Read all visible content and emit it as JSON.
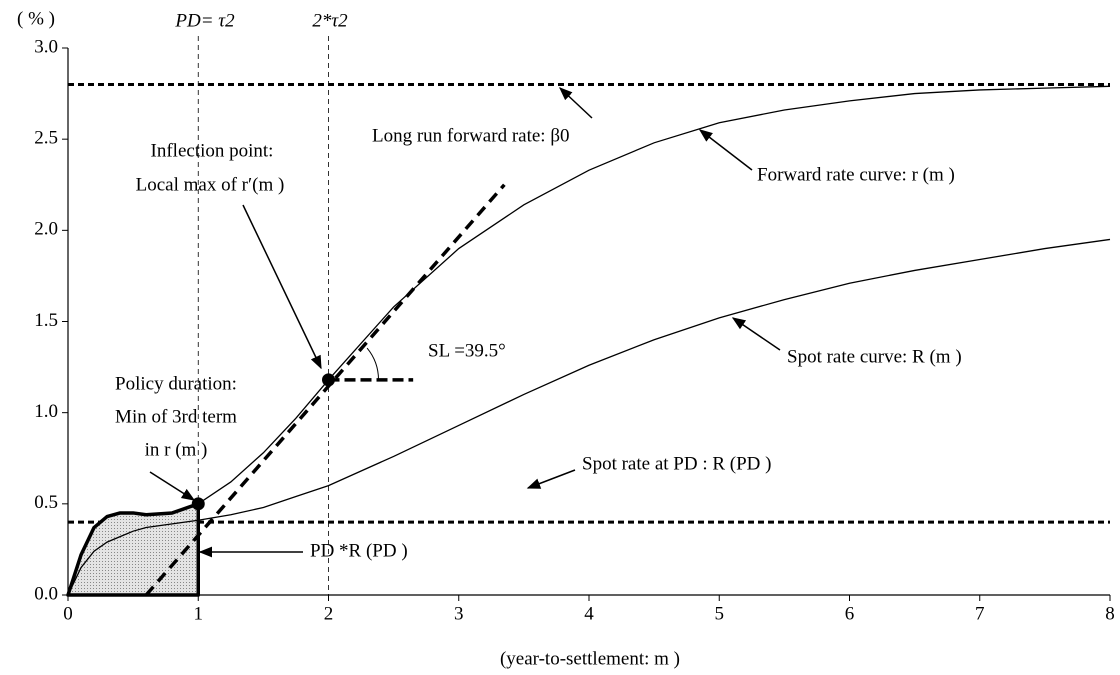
{
  "chart_data": {
    "type": "line",
    "y_label": "( % )",
    "x_label": "(year-to-settlement: m )",
    "x": [
      0,
      0.1,
      0.2,
      0.3,
      0.4,
      0.5,
      0.6,
      0.8,
      1,
      1.25,
      1.5,
      1.75,
      2,
      2.5,
      3,
      3.5,
      4,
      4.5,
      5,
      5.5,
      6,
      6.5,
      7,
      7.5,
      8
    ],
    "series": [
      {
        "name": "Forward rate curve: r (m )",
        "color": "#000000",
        "values": [
          0,
          0.22,
          0.37,
          0.43,
          0.45,
          0.45,
          0.44,
          0.45,
          0.5,
          0.62,
          0.78,
          0.97,
          1.18,
          1.58,
          1.9,
          2.14,
          2.33,
          2.48,
          2.59,
          2.66,
          2.71,
          2.75,
          2.77,
          2.78,
          2.79
        ]
      },
      {
        "name": "Spot rate curve: R (m )",
        "color": "#000000",
        "values": [
          0,
          0.15,
          0.24,
          0.29,
          0.32,
          0.35,
          0.37,
          0.39,
          0.41,
          0.44,
          0.48,
          0.54,
          0.6,
          0.76,
          0.93,
          1.1,
          1.26,
          1.4,
          1.52,
          1.62,
          1.71,
          1.78,
          1.84,
          1.9,
          1.95
        ]
      }
    ],
    "hlines": [
      2.8,
      0.4
    ],
    "vlines": [
      1,
      2
    ],
    "points": [
      {
        "x": 1,
        "y": 0.5
      },
      {
        "x": 2,
        "y": 1.18
      }
    ],
    "tangent": {
      "x": [
        0.6,
        3.35
      ],
      "y": [
        0,
        2.25
      ]
    },
    "level": {
      "x": [
        2,
        2.65
      ],
      "y": [
        1.18,
        1.18
      ]
    },
    "top_labels": [
      "PD= τ2",
      "2*τ2"
    ],
    "annotations": [
      "Long run forward rate: β0",
      "Inflection point:",
      "Local max of r′(m )",
      "SL =39.5°",
      "Policy duration:",
      "Min of 3rd term",
      "in r (m )",
      "Spot rate at PD : R (PD )",
      "PD *R (PD )"
    ],
    "xlim": [
      0,
      8
    ],
    "ylim": [
      0,
      3
    ],
    "xticks": [
      0,
      1,
      2,
      3,
      4,
      5,
      6,
      7,
      8
    ],
    "yticks": [
      {
        "value": 0,
        "label": "0.0"
      },
      0.5,
      {
        "value": 1,
        "label": "1.0"
      },
      1.5,
      {
        "value": 2,
        "label": "2.0"
      },
      2.5,
      {
        "value": 3,
        "label": "3.0"
      }
    ],
    "grid": false
  }
}
